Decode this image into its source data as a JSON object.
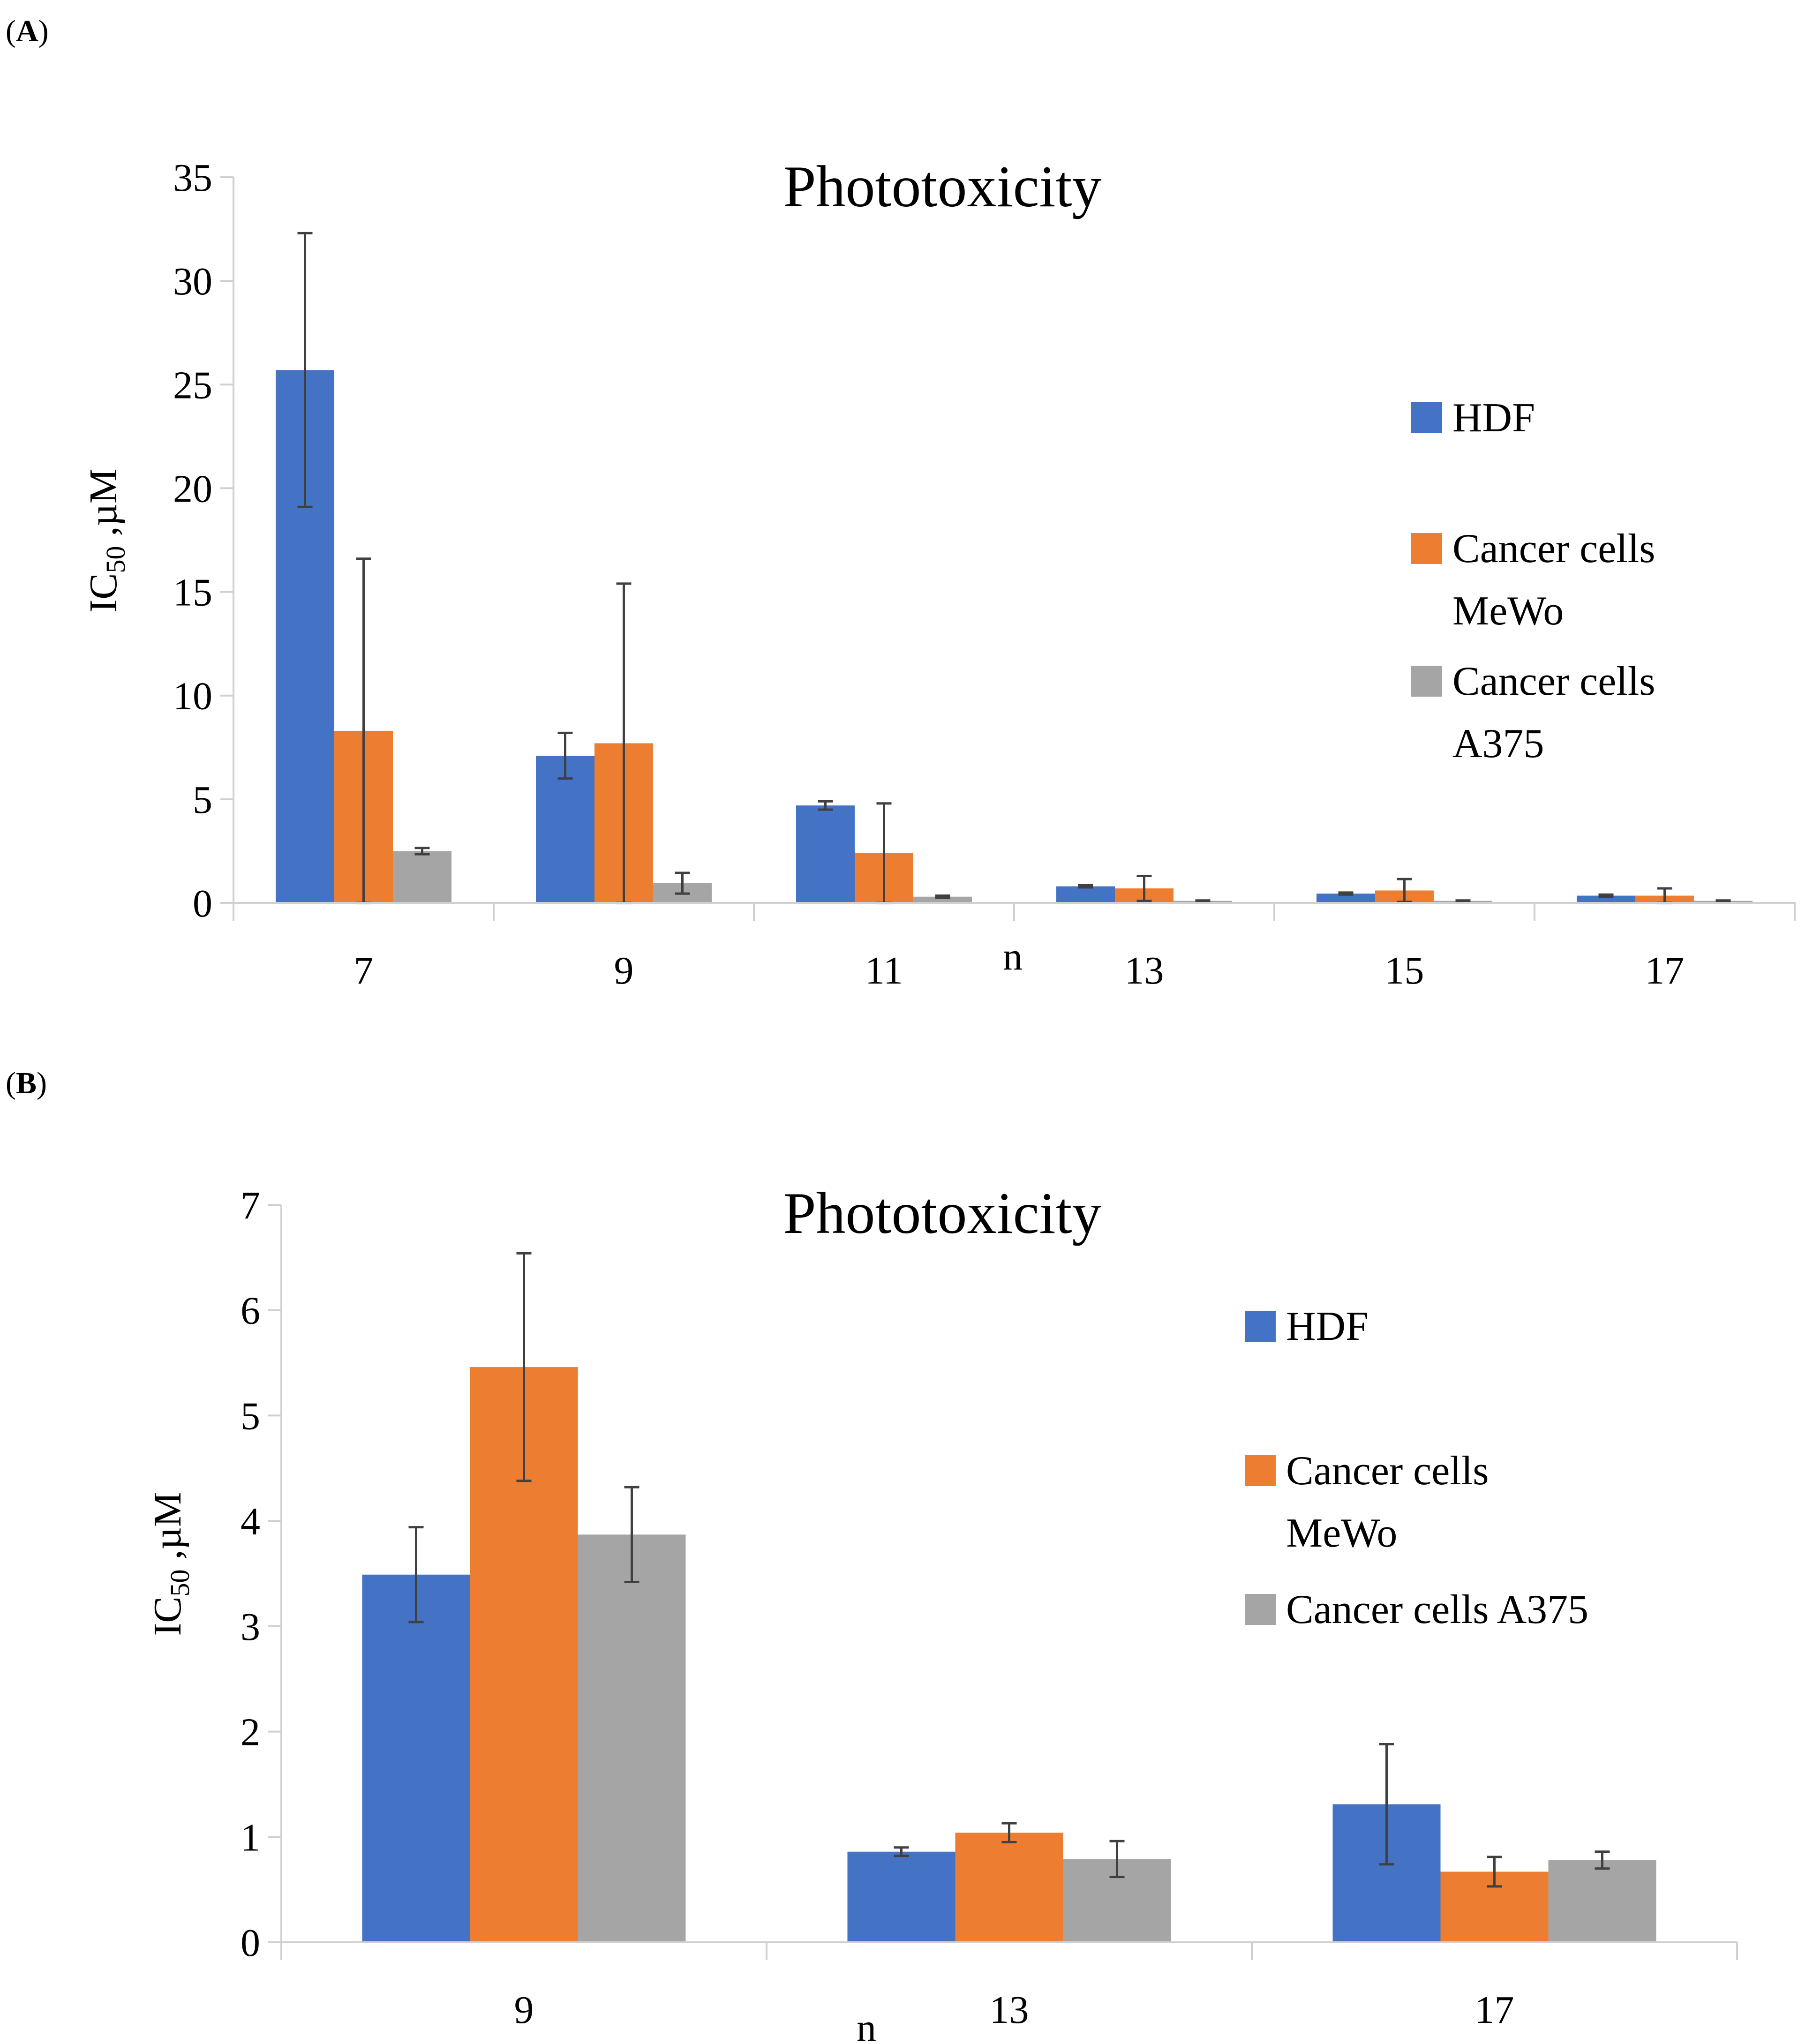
{
  "colors": {
    "hdf": "#4472c4",
    "mewo": "#ed7d31",
    "a375": "#a5a5a5",
    "axis": "#d0d0d0",
    "error": "#404040"
  },
  "chart_data": [
    {
      "panel": "A",
      "type": "bar",
      "title": "Phototoxicity",
      "xlabel": "n",
      "ylabel": {
        "main": "IC",
        "sub": "50",
        "rest": " ,µM"
      },
      "categories": [
        "7",
        "9",
        "11",
        "13",
        "15",
        "17"
      ],
      "ylim": [
        0,
        35
      ],
      "yticks": [
        "0",
        "5",
        "10",
        "15",
        "20",
        "25",
        "30",
        "35"
      ],
      "legend_position": "right",
      "series": [
        {
          "name_lines": [
            "HDF"
          ],
          "color_key": "hdf",
          "values": [
            25.7,
            7.1,
            4.7,
            0.8,
            0.45,
            0.35
          ],
          "errors": [
            6.6,
            1.1,
            0.2,
            0.05,
            0.05,
            0.05
          ]
        },
        {
          "name_lines": [
            "Cancer cells",
            "MeWo"
          ],
          "color_key": "mewo",
          "values": [
            8.3,
            7.7,
            2.4,
            0.7,
            0.6,
            0.35
          ],
          "errors": [
            8.3,
            7.7,
            2.4,
            0.6,
            0.55,
            0.35
          ]
        },
        {
          "name_lines": [
            "Cancer cells",
            "A375"
          ],
          "color_key": "a375",
          "values": [
            2.5,
            0.95,
            0.3,
            0.1,
            0.1,
            0.1
          ],
          "errors": [
            0.15,
            0.5,
            0.05,
            0.02,
            0.02,
            0.02
          ]
        }
      ]
    },
    {
      "panel": "B",
      "type": "bar",
      "title": "Phototoxicity",
      "xlabel": "n",
      "ylabel": {
        "main": "IC",
        "sub": "50",
        "rest": " ,µM"
      },
      "categories": [
        "9",
        "13",
        "17"
      ],
      "ylim": [
        0,
        7
      ],
      "yticks": [
        "0",
        "1",
        "2",
        "3",
        "4",
        "5",
        "6",
        "7"
      ],
      "legend_position": "right",
      "series": [
        {
          "name_lines": [
            "HDF"
          ],
          "color_key": "hdf",
          "values": [
            3.49,
            0.86,
            1.31
          ],
          "errors": [
            0.45,
            0.04,
            0.57
          ]
        },
        {
          "name_lines": [
            "Cancer cells",
            "MeWo"
          ],
          "color_key": "mewo",
          "values": [
            5.46,
            1.04,
            0.67
          ],
          "errors": [
            1.08,
            0.09,
            0.14
          ]
        },
        {
          "name_lines": [
            "Cancer cells A375"
          ],
          "color_key": "a375",
          "values": [
            3.87,
            0.79,
            0.78
          ],
          "errors": [
            0.45,
            0.17,
            0.08
          ]
        }
      ]
    }
  ]
}
